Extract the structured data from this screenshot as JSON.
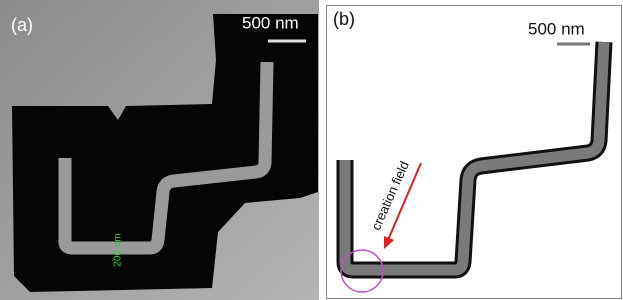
{
  "panels": [
    {
      "label": "(a)",
      "scale_bar": "500 nm",
      "annotation": "200 nm"
    },
    {
      "label": "(b)",
      "scale_bar": "500 nm",
      "annotation": "creation field"
    }
  ]
}
